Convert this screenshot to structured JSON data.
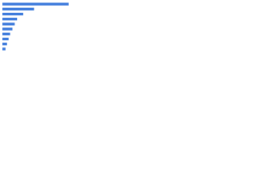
{
  "chart_data": {
    "type": "bar",
    "orientation": "horizontal",
    "categories": [
      null,
      null,
      null,
      null,
      null,
      null,
      null,
      null,
      null,
      null
    ],
    "values": [
      86,
      41,
      27,
      19,
      16,
      13,
      10,
      8,
      6,
      4
    ],
    "color": "#3e7bdc",
    "xlim": [
      0,
      100
    ]
  }
}
